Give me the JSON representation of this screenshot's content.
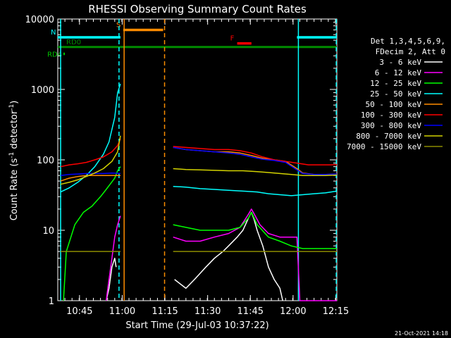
{
  "chart_data": {
    "type": "line",
    "title": "RHESSI Observing Summary Count Rates",
    "xlabel": "Start Time (29-Jul-03 10:37:22)",
    "ylabel": "Count Rate (s",
    "ylabel_sup": "-1",
    "ylabel_mid": " detector",
    "ylabel_sup2": "-1",
    "ylabel_end": ")",
    "x_range_minutes": [
      0,
      98
    ],
    "y_range": [
      1,
      10000
    ],
    "y_scale": "log",
    "x_ticks": [
      {
        "minutes": 7.63,
        "label": "10:45"
      },
      {
        "minutes": 22.63,
        "label": "11:00"
      },
      {
        "minutes": 37.63,
        "label": "11:15"
      },
      {
        "minutes": 52.63,
        "label": "11:30"
      },
      {
        "minutes": 67.63,
        "label": "11:45"
      },
      {
        "minutes": 82.63,
        "label": "12:00"
      },
      {
        "minutes": 97.63,
        "label": "12:15"
      }
    ],
    "y_ticks": [
      {
        "value": 1,
        "label": "1"
      },
      {
        "value": 10,
        "label": "10"
      },
      {
        "value": 100,
        "label": "100"
      },
      {
        "value": 1000,
        "label": "1000"
      },
      {
        "value": 10000,
        "label": "10000"
      }
    ],
    "legend_header": [
      "Det 1,3,4,5,6,9,",
      "FDecim 2, Att 0"
    ],
    "series": [
      {
        "name": "3 - 6 keV",
        "color": "#ffffff",
        "values": [
          [
            17,
            1
          ],
          [
            18,
            1.5
          ],
          [
            19,
            3
          ],
          [
            20,
            4
          ],
          [
            20.5,
            3
          ],
          [
            23,
            null
          ],
          [
            40,
            null
          ],
          [
            41,
            2
          ],
          [
            45,
            1.5
          ],
          [
            48,
            2
          ],
          [
            52,
            3
          ],
          [
            55,
            4
          ],
          [
            58,
            5
          ],
          [
            60,
            6
          ],
          [
            63,
            8
          ],
          [
            65,
            10
          ],
          [
            67,
            15
          ],
          [
            68,
            18
          ],
          [
            69,
            14
          ],
          [
            70,
            10
          ],
          [
            72,
            6
          ],
          [
            74,
            3
          ],
          [
            76,
            2
          ],
          [
            78,
            1.5
          ],
          [
            79,
            1
          ]
        ]
      },
      {
        "name": "6 - 12 keV",
        "color": "#ff00ff",
        "values": [
          [
            17,
            1
          ],
          [
            18,
            2
          ],
          [
            19,
            4
          ],
          [
            20,
            8
          ],
          [
            21,
            12
          ],
          [
            22,
            16
          ],
          [
            23,
            null
          ],
          [
            40,
            null
          ],
          [
            40.5,
            8
          ],
          [
            45,
            7
          ],
          [
            50,
            7
          ],
          [
            55,
            8
          ],
          [
            60,
            9
          ],
          [
            64,
            11
          ],
          [
            67,
            17
          ],
          [
            68,
            20
          ],
          [
            69,
            17
          ],
          [
            71,
            12
          ],
          [
            74,
            9
          ],
          [
            78,
            8
          ],
          [
            82,
            8
          ],
          [
            84,
            8
          ],
          [
            85,
            1
          ],
          [
            98,
            1
          ]
        ]
      },
      {
        "name": "12 - 25 keV",
        "color": "#00ff00",
        "values": [
          [
            2,
            1
          ],
          [
            3,
            5
          ],
          [
            6,
            12
          ],
          [
            9,
            18
          ],
          [
            12,
            22
          ],
          [
            15,
            30
          ],
          [
            17,
            38
          ],
          [
            20,
            55
          ],
          [
            21,
            70
          ],
          [
            22,
            80
          ],
          [
            23,
            null
          ],
          [
            40,
            null
          ],
          [
            40.5,
            12
          ],
          [
            45,
            11
          ],
          [
            50,
            10
          ],
          [
            55,
            10
          ],
          [
            60,
            10
          ],
          [
            64,
            11
          ],
          [
            67,
            15
          ],
          [
            68,
            18
          ],
          [
            70,
            12
          ],
          [
            74,
            8
          ],
          [
            78,
            7
          ],
          [
            82,
            6
          ],
          [
            86,
            5.5
          ],
          [
            90,
            5.5
          ],
          [
            94,
            5.5
          ],
          [
            98,
            5.5
          ]
        ]
      },
      {
        "name": "25 - 50 keV",
        "color": "#00ffff",
        "values": [
          [
            1,
            35
          ],
          [
            4,
            40
          ],
          [
            7,
            48
          ],
          [
            10,
            60
          ],
          [
            13,
            80
          ],
          [
            16,
            120
          ],
          [
            18,
            180
          ],
          [
            20,
            400
          ],
          [
            21,
            900
          ],
          [
            22,
            1200
          ],
          [
            23,
            null
          ],
          [
            40,
            null
          ],
          [
            40.5,
            42
          ],
          [
            45,
            41
          ],
          [
            50,
            39
          ],
          [
            55,
            38
          ],
          [
            60,
            37
          ],
          [
            65,
            36
          ],
          [
            70,
            35
          ],
          [
            74,
            33
          ],
          [
            78,
            32
          ],
          [
            82,
            31
          ],
          [
            86,
            32
          ],
          [
            90,
            33
          ],
          [
            94,
            34
          ],
          [
            98,
            36
          ]
        ]
      },
      {
        "name": "50 - 100 keV",
        "color": "#ff8c00",
        "values": [
          [
            1,
            50
          ],
          [
            4,
            55
          ],
          [
            7,
            58
          ],
          [
            10,
            60
          ],
          [
            13,
            60
          ],
          [
            16,
            60
          ],
          [
            19,
            60
          ],
          [
            22,
            60
          ],
          [
            23,
            null
          ],
          [
            40,
            null
          ],
          [
            40.5,
            150
          ],
          [
            45,
            140
          ],
          [
            50,
            135
          ],
          [
            55,
            130
          ],
          [
            60,
            130
          ],
          [
            64,
            125
          ],
          [
            68,
            115
          ],
          [
            72,
            105
          ],
          [
            76,
            100
          ],
          [
            80,
            95
          ],
          [
            84,
            75
          ],
          [
            86,
            65
          ],
          [
            90,
            62
          ],
          [
            94,
            62
          ],
          [
            98,
            63
          ]
        ]
      },
      {
        "name": "100 - 300 keV",
        "color": "#ff0000",
        "values": [
          [
            1,
            80
          ],
          [
            4,
            85
          ],
          [
            7,
            88
          ],
          [
            10,
            92
          ],
          [
            13,
            100
          ],
          [
            16,
            110
          ],
          [
            19,
            130
          ],
          [
            21,
            160
          ],
          [
            22,
            200
          ],
          [
            23,
            null
          ],
          [
            40,
            null
          ],
          [
            40.5,
            155
          ],
          [
            45,
            150
          ],
          [
            50,
            145
          ],
          [
            55,
            140
          ],
          [
            60,
            140
          ],
          [
            64,
            135
          ],
          [
            68,
            125
          ],
          [
            72,
            110
          ],
          [
            76,
            100
          ],
          [
            80,
            95
          ],
          [
            84,
            90
          ],
          [
            88,
            85
          ],
          [
            92,
            85
          ],
          [
            96,
            85
          ],
          [
            98,
            86
          ]
        ]
      },
      {
        "name": "300 - 800 keV",
        "color": "#0000ff",
        "values": [
          [
            1,
            60
          ],
          [
            4,
            62
          ],
          [
            7,
            63
          ],
          [
            10,
            64
          ],
          [
            13,
            64
          ],
          [
            16,
            64
          ],
          [
            19,
            65
          ],
          [
            22,
            64
          ],
          [
            23,
            null
          ],
          [
            40,
            null
          ],
          [
            40.5,
            150
          ],
          [
            45,
            140
          ],
          [
            50,
            135
          ],
          [
            55,
            130
          ],
          [
            60,
            125
          ],
          [
            64,
            120
          ],
          [
            68,
            110
          ],
          [
            72,
            102
          ],
          [
            76,
            98
          ],
          [
            80,
            92
          ],
          [
            84,
            72
          ],
          [
            86,
            64
          ],
          [
            90,
            62
          ],
          [
            94,
            62
          ],
          [
            98,
            63
          ]
        ]
      },
      {
        "name": "800 - 7000 keV",
        "color": "#d2d200",
        "values": [
          [
            1,
            45
          ],
          [
            4,
            48
          ],
          [
            7,
            52
          ],
          [
            10,
            58
          ],
          [
            13,
            65
          ],
          [
            16,
            75
          ],
          [
            19,
            95
          ],
          [
            21,
            130
          ],
          [
            22,
            220
          ],
          [
            23,
            null
          ],
          [
            40,
            null
          ],
          [
            40.5,
            75
          ],
          [
            45,
            73
          ],
          [
            50,
            72
          ],
          [
            55,
            71
          ],
          [
            60,
            70
          ],
          [
            65,
            70
          ],
          [
            70,
            68
          ],
          [
            74,
            66
          ],
          [
            78,
            64
          ],
          [
            82,
            62
          ],
          [
            86,
            60
          ],
          [
            90,
            60
          ],
          [
            94,
            60
          ],
          [
            98,
            61
          ]
        ]
      },
      {
        "name": "7000 - 15000 keV",
        "color": "#8b8b00",
        "values": [
          [
            1,
            5
          ],
          [
            4,
            5
          ],
          [
            7,
            5
          ],
          [
            10,
            5
          ],
          [
            13,
            5
          ],
          [
            16,
            5
          ],
          [
            19,
            5
          ],
          [
            22,
            5
          ],
          [
            23,
            null
          ],
          [
            40,
            null
          ],
          [
            40.5,
            5
          ],
          [
            45,
            5
          ],
          [
            50,
            5
          ],
          [
            55,
            5
          ],
          [
            60,
            5
          ],
          [
            65,
            5
          ],
          [
            70,
            5
          ],
          [
            74,
            5
          ],
          [
            78,
            5
          ],
          [
            82,
            5
          ],
          [
            86,
            5
          ],
          [
            90,
            5
          ],
          [
            94,
            5
          ],
          [
            98,
            5
          ]
        ]
      }
    ],
    "flags": [
      {
        "name": "SAA",
        "label": "S",
        "color": "#ff8c00",
        "level": 7000,
        "segments": [
          [
            23,
            37
          ]
        ]
      },
      {
        "name": "Night",
        "label": "N",
        "color": "#00ffff",
        "level": 5500,
        "segments": [
          [
            0,
            22
          ],
          [
            84,
            98
          ]
        ]
      },
      {
        "name": "Flare",
        "label": "F",
        "color": "#ff0000",
        "level": 4500,
        "segments": [
          [
            63,
            68
          ]
        ]
      },
      {
        "name": "Decimation RD0",
        "label": "RD0",
        "color": "#008c00",
        "level": 4000,
        "segments": [
          [
            0,
            98
          ]
        ]
      },
      {
        "name": "RD4",
        "label": "RD4",
        "color": "#00c800",
        "level": 3200,
        "segments": [
          [
            2,
            2.5
          ]
        ]
      }
    ],
    "vlines": [
      {
        "minutes": 1,
        "color": "#00ffff",
        "style": "solid"
      },
      {
        "minutes": 21.5,
        "color": "#00ffff",
        "style": "dashed"
      },
      {
        "minutes": 23.3,
        "color": "#ff8c00",
        "style": "solid"
      },
      {
        "minutes": 37.5,
        "color": "#ff8c00",
        "style": "dashed"
      },
      {
        "minutes": 84.5,
        "color": "#00ffff",
        "style": "solid"
      },
      {
        "minutes": 97.8,
        "color": "#00ffff",
        "style": "dashed"
      }
    ]
  },
  "timestamp": "21-Oct-2021 14:18"
}
